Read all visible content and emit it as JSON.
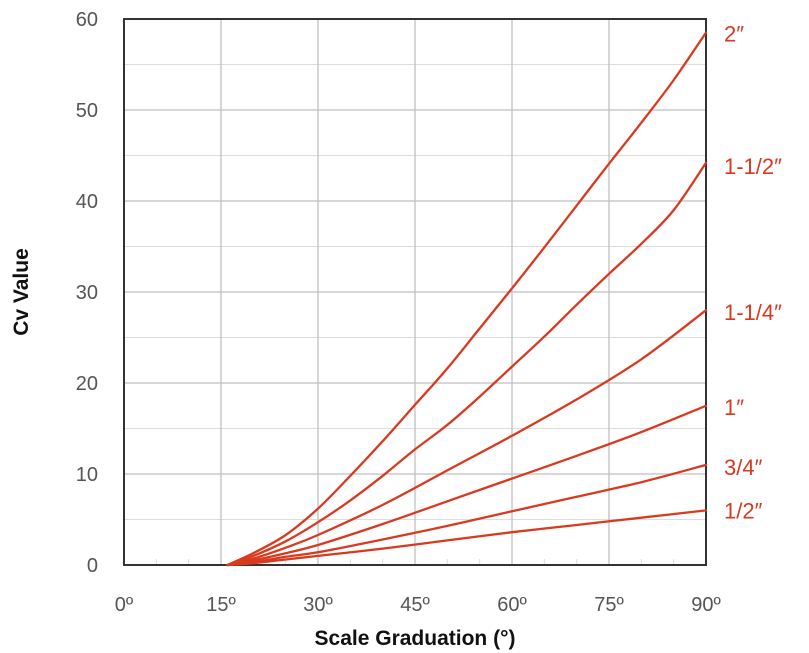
{
  "chart_data": {
    "type": "line",
    "title": "",
    "xlabel": "Scale Graduation (°)",
    "ylabel": "Cv Value",
    "xlim": [
      0,
      90
    ],
    "ylim": [
      0,
      60
    ],
    "x_ticks": [
      "0º",
      "15º",
      "30º",
      "45º",
      "60º",
      "75º",
      "90º"
    ],
    "y_ticks": [
      "0",
      "10",
      "20",
      "30",
      "40",
      "50",
      "60"
    ],
    "grid": true,
    "series_color": "#d93a1f",
    "series": [
      {
        "name": "2″",
        "x": [
          16,
          20,
          25,
          30,
          35,
          40,
          45,
          50,
          55,
          60,
          65,
          70,
          75,
          80,
          85,
          90
        ],
        "y": [
          0,
          1.3,
          3.3,
          6.2,
          9.8,
          13.6,
          17.6,
          21.6,
          26,
          30.4,
          34.9,
          39.5,
          44.1,
          48.6,
          53.3,
          58.5
        ]
      },
      {
        "name": "1-1/2″",
        "x": [
          16,
          20,
          25,
          30,
          35,
          40,
          45,
          50,
          55,
          60,
          65,
          70,
          75,
          80,
          85,
          90
        ],
        "y": [
          0,
          1,
          2.6,
          4.7,
          7.1,
          9.8,
          12.7,
          15.4,
          18.5,
          21.8,
          25.1,
          28.6,
          32,
          35.3,
          39,
          44.2
        ]
      },
      {
        "name": "1-1/4″",
        "x": [
          16,
          20,
          25,
          30,
          40,
          50,
          60,
          70,
          80,
          90
        ],
        "y": [
          0,
          0.7,
          1.9,
          3.3,
          6.6,
          10.4,
          14.2,
          18.2,
          22.6,
          28
        ]
      },
      {
        "name": "1″",
        "x": [
          16,
          20,
          25,
          30,
          40,
          50,
          60,
          70,
          80,
          90
        ],
        "y": [
          0,
          0.5,
          1.3,
          2.2,
          4.5,
          7,
          9.5,
          12,
          14.6,
          17.5
        ]
      },
      {
        "name": "3/4″",
        "x": [
          16,
          20,
          25,
          30,
          40,
          50,
          60,
          70,
          80,
          90
        ],
        "y": [
          0,
          0.3,
          0.9,
          1.4,
          2.8,
          4.3,
          5.9,
          7.5,
          9.1,
          11
        ]
      },
      {
        "name": "1/2″",
        "x": [
          16,
          20,
          25,
          30,
          40,
          50,
          60,
          70,
          80,
          90
        ],
        "y": [
          0,
          0.2,
          0.6,
          1,
          1.8,
          2.7,
          3.6,
          4.4,
          5.2,
          6
        ]
      }
    ]
  }
}
